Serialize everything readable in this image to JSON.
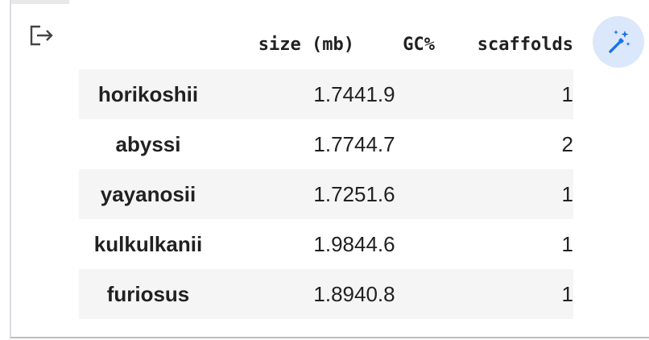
{
  "output_icon": "output-redirect-icon",
  "magic_button_icon": "magic-wand-icon",
  "accent_color": "#1a73e8",
  "table": {
    "columns": [
      "",
      "size (mb)",
      "GC%",
      "scaffolds"
    ],
    "rows": [
      {
        "label": "horikoshii",
        "size": "1.74",
        "gc": "41.9",
        "scaffolds": "1"
      },
      {
        "label": "abyssi",
        "size": "1.77",
        "gc": "44.7",
        "scaffolds": "2"
      },
      {
        "label": "yayanosii",
        "size": "1.72",
        "gc": "51.6",
        "scaffolds": "1"
      },
      {
        "label": "kulkulkanii",
        "size": "1.98",
        "gc": "44.6",
        "scaffolds": "1"
      },
      {
        "label": "furiosus",
        "size": "1.89",
        "gc": "40.8",
        "scaffolds": "1"
      }
    ]
  }
}
